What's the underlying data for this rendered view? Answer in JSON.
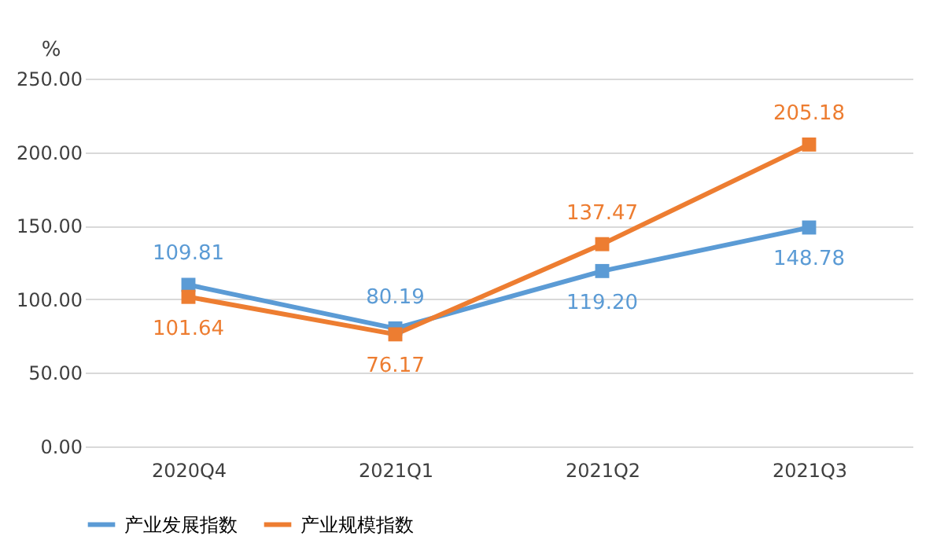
{
  "chart_data": {
    "type": "line",
    "ylabel": "%",
    "categories": [
      "2020Q4",
      "2021Q1",
      "2021Q2",
      "2021Q3"
    ],
    "series": [
      {
        "name": "产业发展指数",
        "color": "#5b9bd5",
        "values": [
          109.81,
          80.19,
          119.2,
          148.78
        ],
        "value_labels": [
          "109.81",
          "80.19",
          "119.20",
          "148.78"
        ]
      },
      {
        "name": "产业规模指数",
        "color": "#ed7d31",
        "values": [
          101.64,
          76.17,
          137.47,
          205.18
        ],
        "value_labels": [
          "101.64",
          "76.17",
          "137.47",
          "205.18"
        ]
      }
    ],
    "ylim": [
      0,
      250
    ],
    "yticks": [
      {
        "value": 0,
        "label": "0.00"
      },
      {
        "value": 50,
        "label": "50.00"
      },
      {
        "value": 100,
        "label": "100.00"
      },
      {
        "value": 150,
        "label": "150.00"
      },
      {
        "value": 200,
        "label": "200.00"
      },
      {
        "value": 250,
        "label": "250.00"
      }
    ],
    "grid": "y",
    "legend": "bottom",
    "marker": "square",
    "line_style": "solid"
  }
}
